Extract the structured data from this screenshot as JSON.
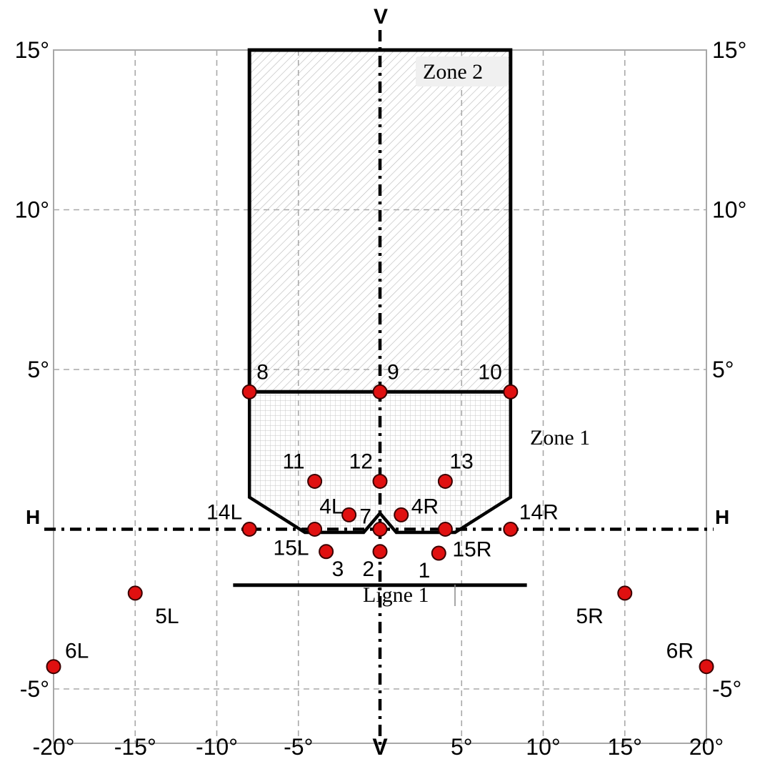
{
  "colors": {
    "grid": "#a8a8a8",
    "outline": "#000000",
    "point_fill": "#e01010",
    "point_stroke": "#3a0000",
    "zone2_hatch": "#b8b8b8",
    "zone1_grid": "#c4c4c4"
  },
  "axes": {
    "x_ticks": [
      {
        "value": -20,
        "label": "-20°"
      },
      {
        "value": -15,
        "label": "-15°"
      },
      {
        "value": -10,
        "label": "-10°"
      },
      {
        "value": -5,
        "label": "-5°"
      },
      {
        "value": 0,
        "label": "V"
      },
      {
        "value": 5,
        "label": "5°"
      },
      {
        "value": 10,
        "label": "10°"
      },
      {
        "value": 15,
        "label": "15°"
      },
      {
        "value": 20,
        "label": "20°"
      }
    ],
    "y_ticks_left": [
      {
        "value": 15,
        "label": "15°"
      },
      {
        "value": 10,
        "label": "10°"
      },
      {
        "value": 5,
        "label": "5°"
      },
      {
        "value": -5,
        "label": "-5°"
      }
    ],
    "y_ticks_right": [
      {
        "value": 15,
        "label": "15°"
      },
      {
        "value": 10,
        "label": "10°"
      },
      {
        "value": 5,
        "label": "5°"
      },
      {
        "value": -5,
        "label": "-5°"
      }
    ],
    "vertical_axis_label": "V",
    "horizontal_axis_label": "H",
    "x_range": [
      -20,
      20
    ],
    "y_range": [
      -6.7,
      15
    ],
    "grid": true,
    "grid_style": "dashed"
  },
  "zones": {
    "zone2_label": "Zone 2",
    "zone1_label": "Zone 1",
    "line1_label": "Ligne 1",
    "zone2_polygon": [
      [
        -8,
        15
      ],
      [
        8,
        15
      ],
      [
        8,
        4.3
      ],
      [
        -8,
        4.3
      ]
    ],
    "zone1_polygon": [
      [
        -8,
        4.3
      ],
      [
        8,
        4.3
      ],
      [
        8,
        1
      ],
      [
        4.6,
        -0.1
      ],
      [
        1,
        -0.1
      ],
      [
        0,
        0.5
      ],
      [
        -1,
        -0.1
      ],
      [
        -4.6,
        -0.1
      ],
      [
        -8,
        1
      ]
    ],
    "line1": [
      [
        -9,
        -1.75
      ],
      [
        9,
        -1.75
      ]
    ]
  },
  "points": [
    {
      "id": "8",
      "label": "8",
      "x": -8,
      "y": 4.3
    },
    {
      "id": "9",
      "label": "9",
      "x": 0,
      "y": 4.3
    },
    {
      "id": "10",
      "label": "10",
      "x": 8,
      "y": 4.3
    },
    {
      "id": "11",
      "label": "11",
      "x": -4,
      "y": 1.5
    },
    {
      "id": "12",
      "label": "12",
      "x": 0,
      "y": 1.5
    },
    {
      "id": "13",
      "label": "13",
      "x": 4,
      "y": 1.5
    },
    {
      "id": "14L",
      "label": "14L",
      "x": -8,
      "y": 0
    },
    {
      "id": "14R",
      "label": "14R",
      "x": 8,
      "y": 0
    },
    {
      "id": "4L",
      "label": "4L",
      "x": -1.9,
      "y": 0.45
    },
    {
      "id": "4R",
      "label": "4R",
      "x": 1.3,
      "y": 0.45
    },
    {
      "id": "7",
      "label": "7",
      "x": 0,
      "y": 0
    },
    {
      "id": "15L",
      "label": "15L",
      "x": -4,
      "y": 0
    },
    {
      "id": "15R",
      "label": "15R",
      "x": 4,
      "y": 0
    },
    {
      "id": "3",
      "label": "3",
      "x": -3.3,
      "y": -0.7
    },
    {
      "id": "2",
      "label": "2",
      "x": 0,
      "y": -0.7
    },
    {
      "id": "1",
      "label": "1",
      "x": 3.6,
      "y": -0.75
    },
    {
      "id": "5L",
      "label": "5L",
      "x": -15,
      "y": -2
    },
    {
      "id": "5R",
      "label": "5R",
      "x": 15,
      "y": -2
    },
    {
      "id": "6L",
      "label": "6L",
      "x": -20,
      "y": -4.3
    },
    {
      "id": "6R",
      "label": "6R",
      "x": 20,
      "y": -4.3
    }
  ]
}
